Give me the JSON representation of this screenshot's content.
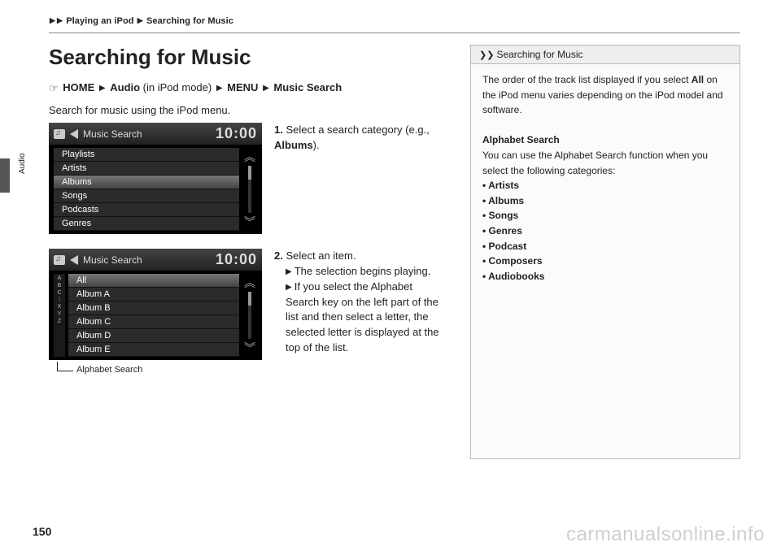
{
  "breadcrumb": {
    "sep": "▶",
    "part1": "Playing an iPod",
    "part2": "Searching for Music"
  },
  "title": "Searching for Music",
  "navpath": {
    "hand": "☞",
    "home": "HOME",
    "sep": "▶",
    "audio": "Audio",
    "audio_note": " (in iPod mode) ",
    "menu": "MENU",
    "last": "Music Search"
  },
  "description": "Search for music using the iPod menu.",
  "screenshot1": {
    "header_title": "Music Search",
    "clock": "10:00",
    "items": [
      "Playlists",
      "Artists",
      "Albums",
      "Songs",
      "Podcasts",
      "Genres"
    ],
    "selected_index": 2
  },
  "step1": {
    "num": "1.",
    "text_a": "Select a search category (e.g., ",
    "text_b": "Albums",
    "text_c": ")."
  },
  "screenshot2": {
    "header_title": "Music Search",
    "clock": "10:00",
    "alpha": {
      "a": "A",
      "b": "B",
      "c": "C",
      "dots": "⋮",
      "x": "X",
      "y": "Y",
      "z": "Z"
    },
    "items": [
      "All",
      "Album A",
      "Album B",
      "Album C",
      "Album D",
      "Album E"
    ],
    "selected_index": 0,
    "caption": "Alphabet Search"
  },
  "step2": {
    "num": "2.",
    "text": "Select an item.",
    "sub1": "The selection begins playing.",
    "sub2": "If you select the Alphabet Search key on the left part of the list and then select a letter, the selected letter is displayed at the top of the list."
  },
  "sidebar": {
    "icon": "❯❯",
    "header": "Searching for Music",
    "para1a": "The order of the track list displayed if you select ",
    "para1b": "All",
    "para1c": " on the iPod menu varies depending on the iPod model and software.",
    "heading": "Alphabet Search",
    "para2": "You can use the Alphabet Search function when you select the following categories:",
    "list": [
      "Artists",
      "Albums",
      "Songs",
      "Genres",
      "Podcast",
      "Composers",
      "Audiobooks"
    ]
  },
  "side_label": "Audio",
  "page_number": "150",
  "watermark": "carmanualsonline.info"
}
